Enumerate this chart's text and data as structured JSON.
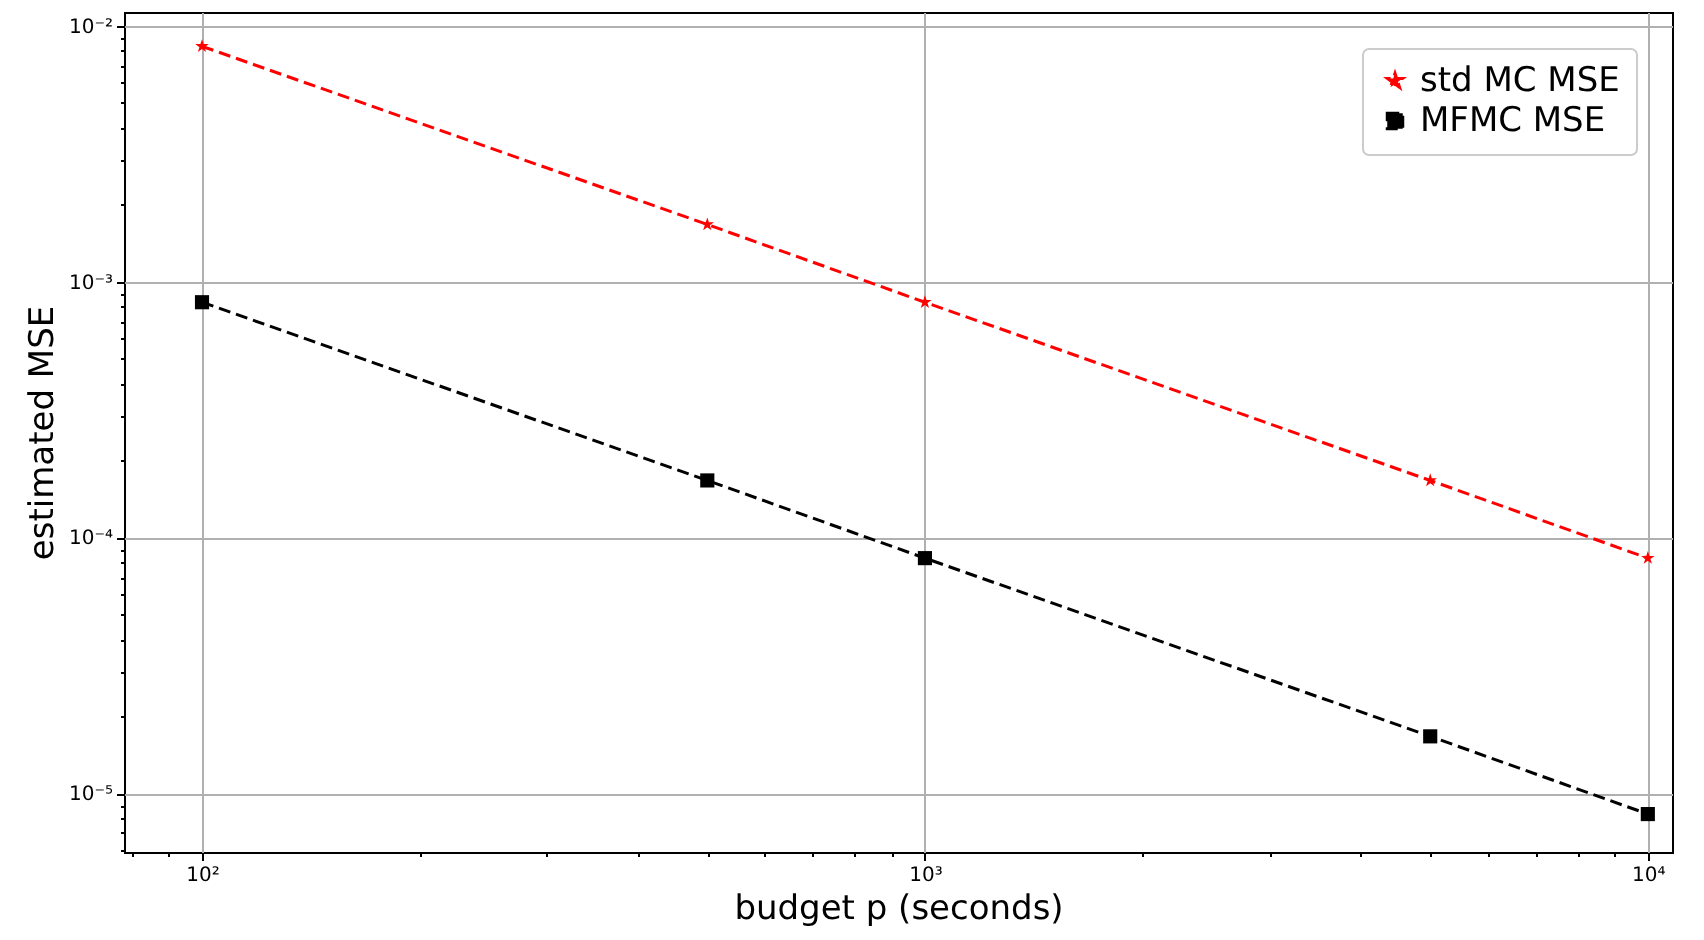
{
  "chart_data": {
    "type": "line",
    "xlabel": "budget p (seconds)",
    "ylabel": "estimated MSE",
    "log": "xy",
    "grid": true,
    "legend": "top right",
    "line_style": "dashed",
    "x": [
      100,
      500,
      1000,
      5000,
      10000
    ],
    "xlim": [
      78,
      10800
    ],
    "ylim": [
      5.9e-06,
      0.0113
    ],
    "xticks": [
      {
        "value": 80,
        "label": null
      },
      {
        "value": 90,
        "label": null
      },
      {
        "value": 100,
        "label": "10²"
      },
      {
        "value": 200,
        "label": null
      },
      {
        "value": 300,
        "label": null
      },
      {
        "value": 400,
        "label": null
      },
      {
        "value": 500,
        "label": null
      },
      {
        "value": 600,
        "label": null
      },
      {
        "value": 700,
        "label": null
      },
      {
        "value": 800,
        "label": null
      },
      {
        "value": 900,
        "label": null
      },
      {
        "value": 1000,
        "label": "10³"
      },
      {
        "value": 2000,
        "label": null
      },
      {
        "value": 3000,
        "label": null
      },
      {
        "value": 4000,
        "label": null
      },
      {
        "value": 5000,
        "label": null
      },
      {
        "value": 6000,
        "label": null
      },
      {
        "value": 7000,
        "label": null
      },
      {
        "value": 8000,
        "label": null
      },
      {
        "value": 9000,
        "label": null
      },
      {
        "value": 10000,
        "label": "10⁴"
      }
    ],
    "yticks": [
      {
        "value": 6e-06,
        "label": null
      },
      {
        "value": 7e-06,
        "label": null
      },
      {
        "value": 8e-06,
        "label": null
      },
      {
        "value": 9e-06,
        "label": null
      },
      {
        "value": 1e-05,
        "label": "10⁻⁵"
      },
      {
        "value": 2e-05,
        "label": null
      },
      {
        "value": 3e-05,
        "label": null
      },
      {
        "value": 4e-05,
        "label": null
      },
      {
        "value": 5e-05,
        "label": null
      },
      {
        "value": 6e-05,
        "label": null
      },
      {
        "value": 7e-05,
        "label": null
      },
      {
        "value": 8e-05,
        "label": null
      },
      {
        "value": 9e-05,
        "label": null
      },
      {
        "value": 0.0001,
        "label": "10⁻⁴"
      },
      {
        "value": 0.0002,
        "label": null
      },
      {
        "value": 0.0003,
        "label": null
      },
      {
        "value": 0.0004,
        "label": null
      },
      {
        "value": 0.0005,
        "label": null
      },
      {
        "value": 0.0006,
        "label": null
      },
      {
        "value": 0.0007,
        "label": null
      },
      {
        "value": 0.0008,
        "label": null
      },
      {
        "value": 0.0009,
        "label": null
      },
      {
        "value": 0.001,
        "label": "10⁻³"
      },
      {
        "value": 0.002,
        "label": null
      },
      {
        "value": 0.003,
        "label": null
      },
      {
        "value": 0.004,
        "label": null
      },
      {
        "value": 0.005,
        "label": null
      },
      {
        "value": 0.006,
        "label": null
      },
      {
        "value": 0.007,
        "label": null
      },
      {
        "value": 0.008,
        "label": null
      },
      {
        "value": 0.009,
        "label": null
      },
      {
        "value": 0.01,
        "label": "10⁻²"
      }
    ],
    "series": [
      {
        "name": "std MC MSE",
        "color": "#ff0000",
        "marker": "star",
        "values": [
          0.0083,
          0.00167,
          0.00083,
          0.000167,
          8.3e-05
        ]
      },
      {
        "name": "MFMC MSE",
        "color": "#000000",
        "marker": "square",
        "values": [
          0.00083,
          0.000167,
          8.3e-05,
          1.67e-05,
          8.3e-06
        ]
      }
    ]
  }
}
